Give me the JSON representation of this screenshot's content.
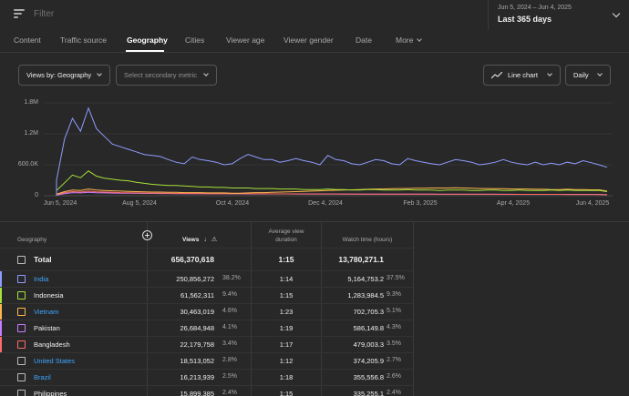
{
  "filter": {
    "placeholder": "Filter"
  },
  "date_picker": {
    "range": "Jun 5, 2024 – Jun 4, 2025",
    "label": "Last 365 days"
  },
  "tabs": [
    {
      "label": "Content"
    },
    {
      "label": "Traffic source"
    },
    {
      "label": "Geography"
    },
    {
      "label": "Cities"
    },
    {
      "label": "Viewer age"
    },
    {
      "label": "Viewer gender"
    },
    {
      "label": "Date"
    },
    {
      "label": "More"
    }
  ],
  "controls": {
    "primary_metric": "Views by: Geography",
    "secondary_metric": "Select secondary metric",
    "chart_type": "Line chart",
    "interval": "Daily"
  },
  "chart_data": {
    "type": "line",
    "y_ticks": [
      "1.8M",
      "1.2M",
      "600.0K",
      "0"
    ],
    "ylim": [
      0,
      1800000
    ],
    "x_ticks": [
      "Jun 5, 2024",
      "Aug 5, 2024",
      "Oct 4, 2024",
      "Dec 4, 2024",
      "Feb 3, 2025",
      "Apr 4, 2025",
      "Jun 4, 2025"
    ],
    "series": [
      {
        "color": "#8f9cff",
        "values": [
          300000,
          1100000,
          1500000,
          1250000,
          1700000,
          1300000,
          1150000,
          1000000,
          950000,
          900000,
          850000,
          800000,
          780000,
          760000,
          700000,
          650000,
          620000,
          750000,
          700000,
          680000,
          650000,
          600000,
          620000,
          720000,
          800000,
          750000,
          700000,
          700000,
          650000,
          680000,
          720000,
          680000,
          650000,
          600000,
          780000,
          700000,
          680000,
          620000,
          600000,
          650000,
          700000,
          680000,
          620000,
          600000,
          720000,
          680000,
          650000,
          620000,
          600000,
          650000,
          700000,
          680000,
          650000,
          600000,
          620000,
          650000,
          700000,
          650000,
          620000,
          600000,
          650000,
          600000,
          630000,
          600000,
          650000,
          620000,
          680000,
          640000,
          600000,
          550000
        ]
      },
      {
        "color": "#a6e23b",
        "values": [
          100000,
          250000,
          400000,
          350000,
          480000,
          380000,
          340000,
          320000,
          300000,
          290000,
          260000,
          240000,
          220000,
          210000,
          200000,
          200000,
          190000,
          180000,
          170000,
          170000,
          160000,
          160000,
          150000,
          150000,
          150000,
          140000,
          140000,
          140000,
          130000,
          130000,
          130000,
          120000,
          120000,
          120000,
          130000,
          120000,
          120000,
          110000,
          110000,
          120000,
          120000,
          110000,
          110000,
          110000,
          120000,
          110000,
          110000,
          110000,
          100000,
          110000,
          110000,
          110000,
          100000,
          100000,
          110000,
          110000,
          100000,
          100000,
          110000,
          100000,
          100000,
          100000,
          110000,
          100000,
          110000,
          100000,
          100000,
          100000,
          100000,
          80000
        ]
      },
      {
        "color": "#ffb74d",
        "values": [
          30000,
          80000,
          110000,
          100000,
          130000,
          110000,
          100000,
          95000,
          90000,
          85000,
          80000,
          75000,
          70000,
          70000,
          65000,
          65000,
          60000,
          60000,
          60000,
          55000,
          55000,
          55000,
          50000,
          50000,
          55000,
          60000,
          60000,
          65000,
          70000,
          75000,
          80000,
          85000,
          90000,
          95000,
          100000,
          105000,
          110000,
          115000,
          120000,
          125000,
          130000,
          130000,
          135000,
          140000,
          140000,
          145000,
          145000,
          150000,
          150000,
          150000,
          155000,
          150000,
          145000,
          140000,
          140000,
          135000,
          135000,
          130000,
          130000,
          130000,
          125000,
          125000,
          120000,
          120000,
          125000,
          120000,
          120000,
          115000,
          115000,
          90000
        ]
      },
      {
        "color": "#ff6b6b",
        "values": [
          20000,
          60000,
          80000,
          70000,
          90000,
          75000,
          70000,
          65000,
          60000,
          58000,
          55000,
          52000,
          50000,
          48000,
          46000,
          45000,
          44000,
          43000,
          42000,
          41000,
          40000,
          40000,
          39000,
          38000,
          38000,
          37000,
          37000,
          36000,
          36000,
          35000,
          35000,
          35000,
          34000,
          34000,
          34000,
          33000,
          33000,
          33000,
          32000,
          32000,
          32000,
          31000,
          31000,
          31000,
          30000,
          30000,
          30000,
          30000,
          29000,
          29000,
          29000,
          29000,
          28000,
          28000,
          28000,
          28000,
          27000,
          27000,
          27000,
          27000,
          26000,
          26000,
          26000,
          26000,
          25000,
          25000,
          25000,
          25000,
          25000,
          20000
        ]
      },
      {
        "color": "#c77dff",
        "values": [
          15000,
          40000,
          60000,
          55000,
          65000,
          58000,
          55000,
          52000,
          50000,
          48000,
          46000,
          45000,
          44000,
          43000,
          42000,
          41000,
          40000,
          40000,
          39000,
          39000,
          38000,
          38000,
          37000,
          37000,
          36000,
          36000,
          36000,
          35000,
          35000,
          35000,
          34000,
          34000,
          34000,
          33000,
          33000,
          33000,
          32000,
          32000,
          32000,
          32000,
          31000,
          31000,
          31000,
          31000,
          30000,
          30000,
          30000,
          30000,
          29000,
          29000,
          29000,
          29000,
          29000,
          28000,
          28000,
          28000,
          28000,
          28000,
          27000,
          27000,
          27000,
          27000,
          27000,
          26000,
          26000,
          26000,
          26000,
          26000,
          25000,
          20000
        ]
      }
    ]
  },
  "table": {
    "headers": {
      "geography": "Geography",
      "views": "Views",
      "avd_line1": "Average view",
      "avd_line2": "duration",
      "watch_time": "Watch time (hours)"
    },
    "total": {
      "label": "Total",
      "views": "656,370,618",
      "avd": "1:15",
      "watch_time": "13,780,271.1"
    },
    "rows": [
      {
        "name": "India",
        "link": true,
        "color": "#8f9cff",
        "views": "250,856,272",
        "views_pct": "38.2%",
        "avd": "1:14",
        "watch_time": "5,164,753.2",
        "wt_pct": "37.5%"
      },
      {
        "name": "Indonesia",
        "link": false,
        "color": "#a6e23b",
        "views": "61,562,311",
        "views_pct": "9.4%",
        "avd": "1:15",
        "watch_time": "1,283,984.5",
        "wt_pct": "9.3%"
      },
      {
        "name": "Vietnam",
        "link": true,
        "color": "#ffb74d",
        "views": "30,463,019",
        "views_pct": "4.6%",
        "avd": "1:23",
        "watch_time": "702,705.3",
        "wt_pct": "5.1%"
      },
      {
        "name": "Pakistan",
        "link": false,
        "color": "#c77dff",
        "views": "26,684,948",
        "views_pct": "4.1%",
        "avd": "1:19",
        "watch_time": "586,149.8",
        "wt_pct": "4.3%"
      },
      {
        "name": "Bangladesh",
        "link": false,
        "color": "#ff6b6b",
        "views": "22,179,758",
        "views_pct": "3.4%",
        "avd": "1:17",
        "watch_time": "479,003.3",
        "wt_pct": "3.5%"
      },
      {
        "name": "United States",
        "link": true,
        "color": "",
        "views": "18,513,052",
        "views_pct": "2.8%",
        "avd": "1:12",
        "watch_time": "374,205.9",
        "wt_pct": "2.7%"
      },
      {
        "name": "Brazil",
        "link": true,
        "color": "",
        "views": "16,213,939",
        "views_pct": "2.5%",
        "avd": "1:18",
        "watch_time": "355,556.8",
        "wt_pct": "2.6%"
      },
      {
        "name": "Philippines",
        "link": false,
        "color": "",
        "views": "15,899,385",
        "views_pct": "2.4%",
        "avd": "1:15",
        "watch_time": "335,255.1",
        "wt_pct": "2.4%"
      }
    ]
  }
}
